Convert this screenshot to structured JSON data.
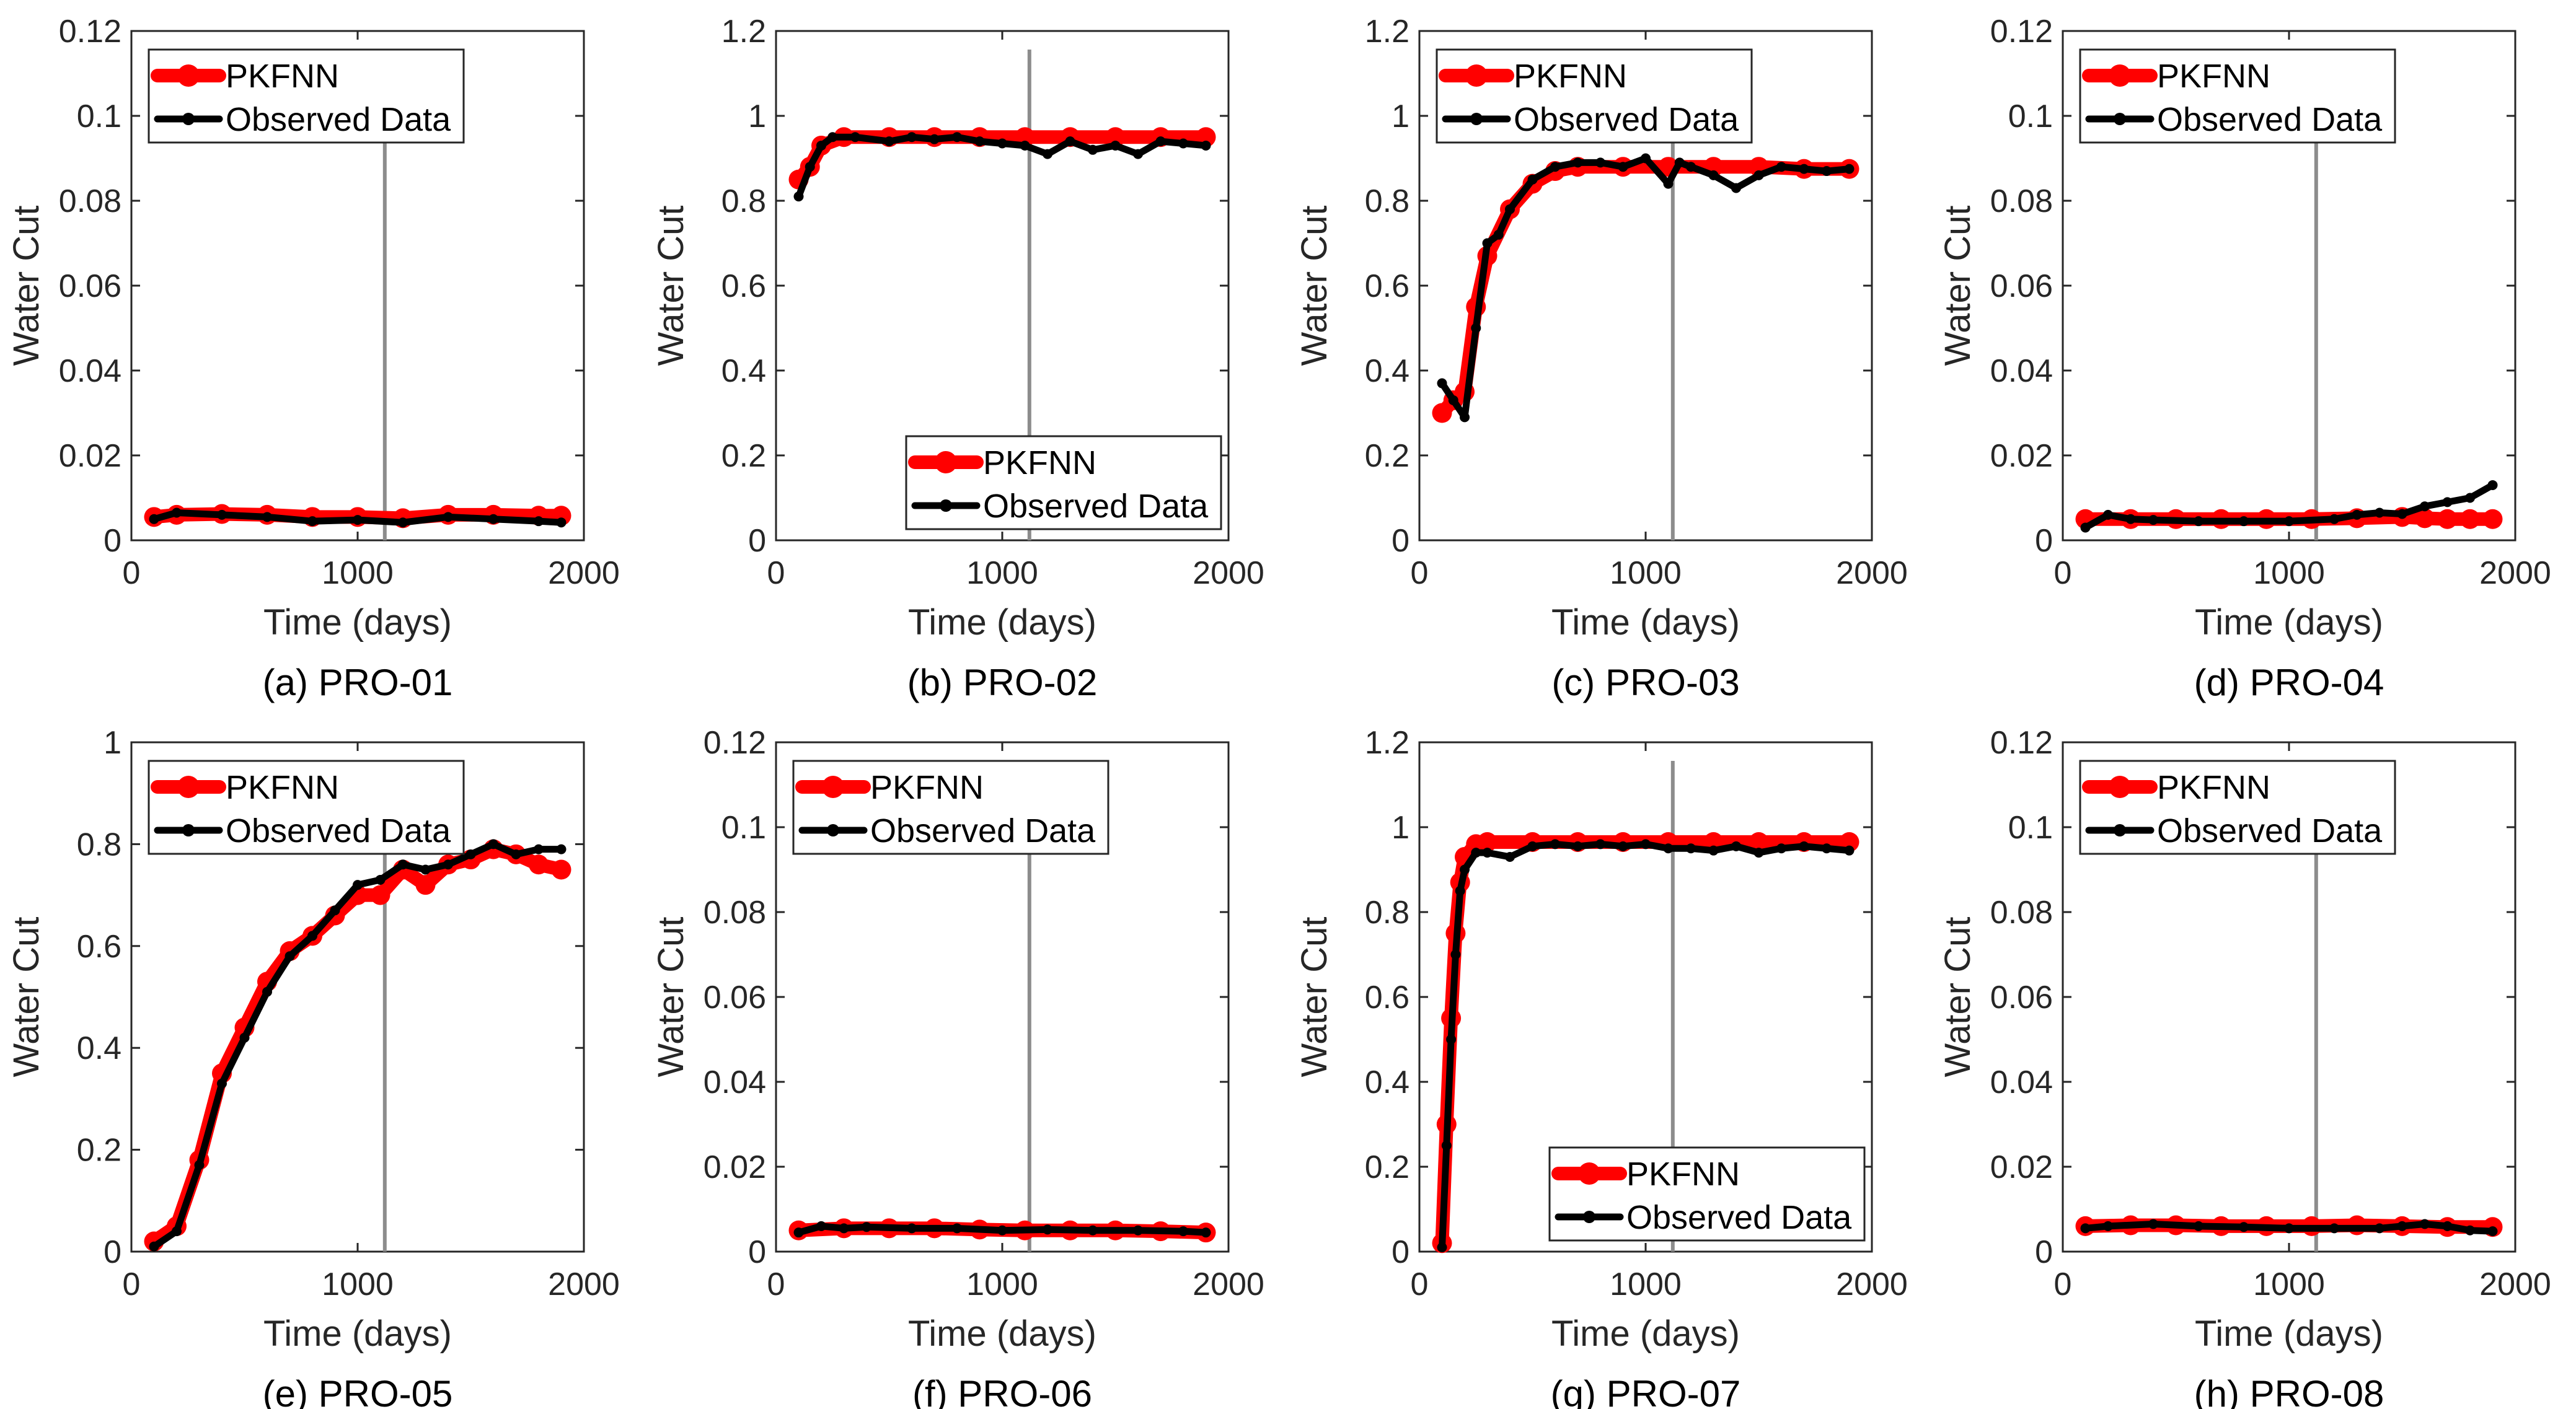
{
  "colors": {
    "predicted": "#ff0000",
    "observed": "#000000",
    "split_line": "#8c8c8c",
    "axes": "#262626",
    "background": "#ffffff"
  },
  "chart_data": [
    {
      "type": "line",
      "caption": "(a) PRO-01",
      "xlabel": "Time (days)",
      "ylabel": "Water Cut",
      "xlim": [
        0,
        2000
      ],
      "ylim": [
        0,
        0.12
      ],
      "xticks": [
        "0",
        "1000",
        "2000"
      ],
      "yticks": [
        "0",
        "0.02",
        "0.04",
        "0.06",
        "0.08",
        "0.1",
        "0.12"
      ],
      "train_test_split_x": 1120,
      "legend_location": "top-left",
      "series": [
        {
          "name": "PKFNN",
          "x": [
            100,
            200,
            400,
            600,
            800,
            1000,
            1200,
            1400,
            1600,
            1800,
            1900
          ],
          "y": [
            0.0055,
            0.006,
            0.0062,
            0.006,
            0.0055,
            0.0055,
            0.0052,
            0.006,
            0.006,
            0.0058,
            0.0058
          ]
        },
        {
          "name": "Observed Data",
          "x": [
            100,
            200,
            400,
            600,
            800,
            1000,
            1200,
            1400,
            1600,
            1800,
            1900
          ],
          "y": [
            0.005,
            0.0065,
            0.006,
            0.0055,
            0.0045,
            0.0048,
            0.0042,
            0.0055,
            0.005,
            0.0045,
            0.0042
          ]
        }
      ]
    },
    {
      "type": "line",
      "caption": "(b) PRO-02",
      "xlabel": "Time (days)",
      "ylabel": "Water Cut",
      "xlim": [
        0,
        2000
      ],
      "ylim": [
        0,
        1.2
      ],
      "xticks": [
        "0",
        "1000",
        "2000"
      ],
      "yticks": [
        "0",
        "0.2",
        "0.4",
        "0.6",
        "0.8",
        "1",
        "1.2"
      ],
      "train_test_split_x": 1120,
      "legend_location": "bottom-right",
      "series": [
        {
          "name": "PKFNN",
          "x": [
            100,
            150,
            200,
            300,
            500,
            700,
            900,
            1100,
            1300,
            1500,
            1700,
            1900
          ],
          "y": [
            0.85,
            0.88,
            0.93,
            0.95,
            0.95,
            0.95,
            0.95,
            0.95,
            0.95,
            0.95,
            0.95,
            0.95
          ]
        },
        {
          "name": "Observed Data",
          "x": [
            100,
            150,
            200,
            250,
            350,
            500,
            600,
            700,
            800,
            900,
            1000,
            1100,
            1200,
            1300,
            1400,
            1500,
            1600,
            1700,
            1800,
            1900
          ],
          "y": [
            0.81,
            0.88,
            0.93,
            0.95,
            0.95,
            0.94,
            0.95,
            0.945,
            0.95,
            0.94,
            0.935,
            0.93,
            0.91,
            0.94,
            0.92,
            0.93,
            0.91,
            0.94,
            0.935,
            0.93
          ]
        }
      ]
    },
    {
      "type": "line",
      "caption": "(c) PRO-03",
      "xlabel": "Time (days)",
      "ylabel": "Water Cut",
      "xlim": [
        0,
        2000
      ],
      "ylim": [
        0,
        1.2
      ],
      "xticks": [
        "0",
        "1000",
        "2000"
      ],
      "yticks": [
        "0",
        "0.2",
        "0.4",
        "0.6",
        "0.8",
        "1",
        "1.2"
      ],
      "train_test_split_x": 1120,
      "legend_location": "top-left",
      "series": [
        {
          "name": "PKFNN",
          "x": [
            100,
            150,
            200,
            250,
            300,
            400,
            500,
            600,
            700,
            900,
            1100,
            1300,
            1500,
            1700,
            1900
          ],
          "y": [
            0.3,
            0.33,
            0.35,
            0.55,
            0.67,
            0.78,
            0.84,
            0.87,
            0.88,
            0.88,
            0.88,
            0.88,
            0.88,
            0.875,
            0.875
          ]
        },
        {
          "name": "Observed Data",
          "x": [
            100,
            150,
            200,
            250,
            300,
            350,
            400,
            500,
            600,
            700,
            800,
            900,
            1000,
            1100,
            1150,
            1200,
            1300,
            1400,
            1500,
            1600,
            1700,
            1800,
            1900
          ],
          "y": [
            0.37,
            0.33,
            0.29,
            0.5,
            0.7,
            0.72,
            0.78,
            0.85,
            0.88,
            0.89,
            0.89,
            0.88,
            0.9,
            0.84,
            0.89,
            0.88,
            0.86,
            0.83,
            0.86,
            0.88,
            0.875,
            0.87,
            0.875
          ]
        }
      ]
    },
    {
      "type": "line",
      "caption": "(d) PRO-04",
      "xlabel": "Time (days)",
      "ylabel": "Water Cut",
      "xlim": [
        0,
        2000
      ],
      "ylim": [
        0,
        0.12
      ],
      "xticks": [
        "0",
        "1000",
        "2000"
      ],
      "yticks": [
        "0",
        "0.02",
        "0.04",
        "0.06",
        "0.08",
        "0.1",
        "0.12"
      ],
      "train_test_split_x": 1120,
      "legend_location": "top-left",
      "series": [
        {
          "name": "PKFNN",
          "x": [
            100,
            300,
            500,
            700,
            900,
            1100,
            1300,
            1500,
            1600,
            1700,
            1800,
            1900
          ],
          "y": [
            0.005,
            0.005,
            0.005,
            0.005,
            0.005,
            0.005,
            0.0052,
            0.0055,
            0.0052,
            0.005,
            0.005,
            0.005
          ]
        },
        {
          "name": "Observed Data",
          "x": [
            100,
            200,
            300,
            400,
            600,
            800,
            1000,
            1200,
            1300,
            1400,
            1500,
            1600,
            1700,
            1800,
            1900
          ],
          "y": [
            0.003,
            0.006,
            0.005,
            0.0048,
            0.0045,
            0.0045,
            0.0045,
            0.005,
            0.006,
            0.0065,
            0.0062,
            0.008,
            0.009,
            0.01,
            0.013
          ]
        }
      ]
    },
    {
      "type": "line",
      "caption": "(e) PRO-05",
      "xlabel": "Time (days)",
      "ylabel": "Water Cut",
      "xlim": [
        0,
        2000
      ],
      "ylim": [
        0,
        1
      ],
      "xticks": [
        "0",
        "1000",
        "2000"
      ],
      "yticks": [
        "0",
        "0.2",
        "0.4",
        "0.6",
        "0.8",
        "1"
      ],
      "train_test_split_x": 1120,
      "legend_location": "top-left",
      "series": [
        {
          "name": "PKFNN",
          "x": [
            100,
            200,
            300,
            400,
            500,
            600,
            700,
            800,
            900,
            1000,
            1100,
            1200,
            1300,
            1400,
            1500,
            1600,
            1700,
            1800,
            1900
          ],
          "y": [
            0.02,
            0.05,
            0.18,
            0.35,
            0.44,
            0.53,
            0.59,
            0.62,
            0.66,
            0.7,
            0.7,
            0.75,
            0.72,
            0.76,
            0.77,
            0.79,
            0.78,
            0.76,
            0.75
          ]
        },
        {
          "name": "Observed Data",
          "x": [
            100,
            200,
            300,
            400,
            500,
            600,
            700,
            800,
            900,
            1000,
            1100,
            1200,
            1300,
            1400,
            1500,
            1600,
            1700,
            1800,
            1900
          ],
          "y": [
            0.01,
            0.04,
            0.17,
            0.33,
            0.42,
            0.51,
            0.58,
            0.62,
            0.67,
            0.72,
            0.73,
            0.76,
            0.75,
            0.76,
            0.78,
            0.8,
            0.78,
            0.79,
            0.79
          ]
        }
      ]
    },
    {
      "type": "line",
      "caption": "(f) PRO-06",
      "xlabel": "Time (days)",
      "ylabel": "Water Cut",
      "xlim": [
        0,
        2000
      ],
      "ylim": [
        0,
        0.12
      ],
      "xticks": [
        "0",
        "1000",
        "2000"
      ],
      "yticks": [
        "0",
        "0.02",
        "0.04",
        "0.06",
        "0.08",
        "0.1",
        "0.12"
      ],
      "train_test_split_x": 1120,
      "legend_location": "top-left",
      "series": [
        {
          "name": "PKFNN",
          "x": [
            100,
            300,
            500,
            700,
            900,
            1100,
            1300,
            1500,
            1700,
            1900
          ],
          "y": [
            0.005,
            0.0055,
            0.0055,
            0.0055,
            0.0052,
            0.005,
            0.005,
            0.005,
            0.0048,
            0.0045
          ]
        },
        {
          "name": "Observed Data",
          "x": [
            100,
            200,
            300,
            400,
            600,
            800,
            1000,
            1200,
            1400,
            1600,
            1800,
            1900
          ],
          "y": [
            0.0045,
            0.006,
            0.0055,
            0.0058,
            0.0055,
            0.0055,
            0.005,
            0.0052,
            0.005,
            0.005,
            0.0048,
            0.0045
          ]
        }
      ]
    },
    {
      "type": "line",
      "caption": "(g) PRO-07",
      "xlabel": "Time (days)",
      "ylabel": "Water Cut",
      "xlim": [
        0,
        2000
      ],
      "ylim": [
        0,
        1.2
      ],
      "xticks": [
        "0",
        "1000",
        "2000"
      ],
      "yticks": [
        "0",
        "0.2",
        "0.4",
        "0.6",
        "0.8",
        "1",
        "1.2"
      ],
      "train_test_split_x": 1120,
      "legend_location": "bottom-right",
      "series": [
        {
          "name": "PKFNN",
          "x": [
            100,
            120,
            140,
            160,
            180,
            200,
            250,
            300,
            500,
            700,
            900,
            1100,
            1300,
            1500,
            1700,
            1900
          ],
          "y": [
            0.02,
            0.3,
            0.55,
            0.75,
            0.87,
            0.93,
            0.96,
            0.965,
            0.965,
            0.965,
            0.965,
            0.965,
            0.965,
            0.965,
            0.965,
            0.965
          ]
        },
        {
          "name": "Observed Data",
          "x": [
            100,
            120,
            140,
            160,
            180,
            200,
            250,
            300,
            400,
            500,
            600,
            700,
            800,
            900,
            1000,
            1100,
            1200,
            1300,
            1400,
            1500,
            1600,
            1700,
            1800,
            1900
          ],
          "y": [
            0.01,
            0.25,
            0.5,
            0.7,
            0.85,
            0.9,
            0.94,
            0.94,
            0.93,
            0.955,
            0.96,
            0.955,
            0.96,
            0.955,
            0.96,
            0.95,
            0.95,
            0.945,
            0.955,
            0.94,
            0.95,
            0.955,
            0.95,
            0.945
          ]
        }
      ]
    },
    {
      "type": "line",
      "caption": "(h) PRO-08",
      "xlabel": "Time (days)",
      "ylabel": "Water Cut",
      "xlim": [
        0,
        2000
      ],
      "ylim": [
        0,
        0.12
      ],
      "xticks": [
        "0",
        "1000",
        "2000"
      ],
      "yticks": [
        "0",
        "0.02",
        "0.04",
        "0.06",
        "0.08",
        "0.1",
        "0.12"
      ],
      "train_test_split_x": 1120,
      "legend_location": "top-left",
      "series": [
        {
          "name": "PKFNN",
          "x": [
            100,
            300,
            500,
            700,
            900,
            1100,
            1300,
            1500,
            1700,
            1900
          ],
          "y": [
            0.006,
            0.0062,
            0.0062,
            0.006,
            0.006,
            0.006,
            0.0062,
            0.006,
            0.0058,
            0.0058
          ]
        },
        {
          "name": "Observed Data",
          "x": [
            100,
            200,
            400,
            600,
            800,
            1000,
            1200,
            1400,
            1500,
            1600,
            1700,
            1800,
            1900
          ],
          "y": [
            0.0055,
            0.006,
            0.0065,
            0.006,
            0.0058,
            0.0055,
            0.0055,
            0.0055,
            0.006,
            0.0065,
            0.006,
            0.005,
            0.0048
          ]
        }
      ]
    }
  ]
}
